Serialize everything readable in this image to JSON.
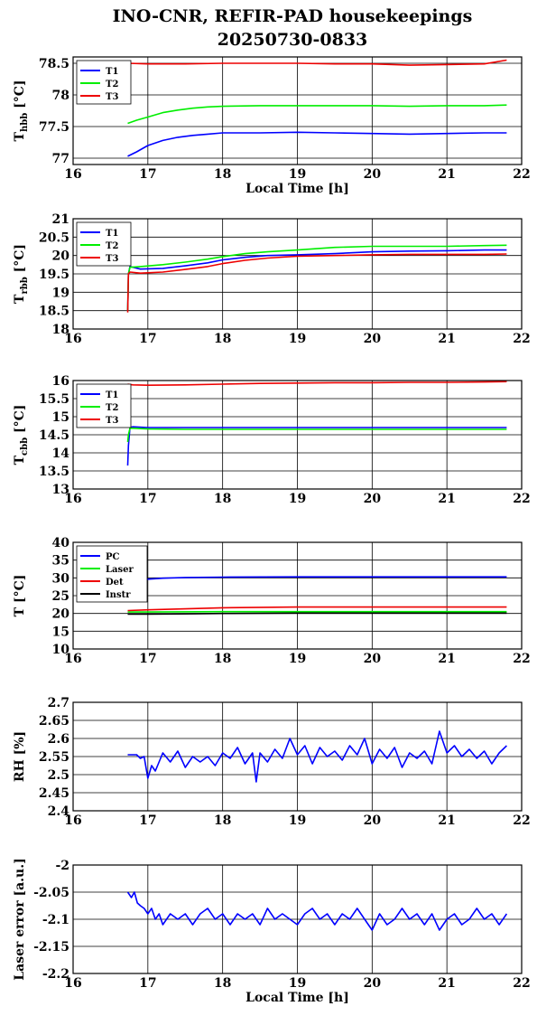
{
  "title_line1": "INO-CNR, REFIR-PAD housekeepings",
  "title_line2": "20250730-0833",
  "chart_data": [
    {
      "type": "line",
      "ylabel": "T",
      "ylabel_sub": "hbb",
      "ylabel_unit": "[°C]",
      "xlabel": "Local Time [h]",
      "xlim": [
        16,
        22
      ],
      "ylim": [
        76.9,
        78.6
      ],
      "yticks": [
        77,
        77.5,
        78,
        78.5
      ],
      "ytick_labels": [
        "77",
        "77.5",
        "78",
        "78.5"
      ],
      "xticks": [
        16,
        17,
        18,
        19,
        20,
        21,
        22
      ],
      "legend_position": "top-left",
      "series": [
        {
          "name": "T1",
          "color": "#0000ff",
          "x": [
            16.73,
            16.85,
            17.0,
            17.2,
            17.4,
            17.6,
            17.8,
            18.0,
            18.5,
            19.0,
            19.5,
            20.0,
            20.5,
            21.0,
            21.5,
            21.8
          ],
          "y": [
            77.03,
            77.1,
            77.2,
            77.28,
            77.33,
            77.36,
            77.38,
            77.4,
            77.4,
            77.41,
            77.4,
            77.39,
            77.38,
            77.39,
            77.4,
            77.4
          ]
        },
        {
          "name": "T2",
          "color": "#00ee00",
          "x": [
            16.73,
            16.85,
            17.0,
            17.2,
            17.4,
            17.6,
            17.8,
            18.0,
            18.5,
            19.0,
            19.5,
            20.0,
            20.5,
            21.0,
            21.5,
            21.8
          ],
          "y": [
            77.55,
            77.6,
            77.65,
            77.72,
            77.76,
            77.79,
            77.81,
            77.82,
            77.83,
            77.83,
            77.83,
            77.83,
            77.82,
            77.83,
            77.83,
            77.84
          ]
        },
        {
          "name": "T3",
          "color": "#ee0000",
          "x": [
            16.73,
            17.0,
            17.5,
            18.0,
            18.5,
            19.0,
            19.5,
            20.0,
            20.5,
            21.0,
            21.5,
            21.8
          ],
          "y": [
            78.5,
            78.49,
            78.49,
            78.5,
            78.5,
            78.5,
            78.49,
            78.49,
            78.47,
            78.48,
            78.49,
            78.55
          ]
        }
      ]
    },
    {
      "type": "line",
      "ylabel": "T",
      "ylabel_sub": "rbb",
      "ylabel_unit": "[°C]",
      "xlabel": "",
      "xlim": [
        16,
        22
      ],
      "ylim": [
        18,
        21
      ],
      "yticks": [
        18,
        18.5,
        19,
        19.5,
        20,
        20.5,
        21
      ],
      "ytick_labels": [
        "18",
        "18.5",
        "19",
        "19.5",
        "20",
        "20.5",
        "21"
      ],
      "xticks": [
        16,
        17,
        18,
        19,
        20,
        21,
        22
      ],
      "legend_position": "top-left",
      "series": [
        {
          "name": "T1",
          "color": "#0000ff",
          "x": [
            16.73,
            16.74,
            16.76,
            16.9,
            17.2,
            17.5,
            17.8,
            18.0,
            18.3,
            18.6,
            19.0,
            19.5,
            20.0,
            20.5,
            21.0,
            21.5,
            21.8
          ],
          "y": [
            18.5,
            19.5,
            19.7,
            19.63,
            19.65,
            19.72,
            19.8,
            19.88,
            19.95,
            20.0,
            20.02,
            20.05,
            20.1,
            20.12,
            20.13,
            20.15,
            20.15
          ]
        },
        {
          "name": "T2",
          "color": "#00ee00",
          "x": [
            16.73,
            16.74,
            16.76,
            16.9,
            17.2,
            17.5,
            17.8,
            18.0,
            18.3,
            18.6,
            19.0,
            19.5,
            20.0,
            20.5,
            21.0,
            21.5,
            21.8
          ],
          "y": [
            18.5,
            19.5,
            19.68,
            19.7,
            19.75,
            19.82,
            19.9,
            19.97,
            20.05,
            20.1,
            20.15,
            20.22,
            20.25,
            20.25,
            20.25,
            20.27,
            20.28
          ]
        },
        {
          "name": "T3",
          "color": "#ee0000",
          "x": [
            16.73,
            16.74,
            16.76,
            16.9,
            17.2,
            17.5,
            17.8,
            18.0,
            18.3,
            18.6,
            19.0,
            19.5,
            20.0,
            20.5,
            21.0,
            21.5,
            21.8
          ],
          "y": [
            18.45,
            19.5,
            19.55,
            19.52,
            19.55,
            19.62,
            19.7,
            19.78,
            19.87,
            19.93,
            19.98,
            20.0,
            20.02,
            20.03,
            20.03,
            20.03,
            20.04
          ]
        }
      ]
    },
    {
      "type": "line",
      "ylabel": "T",
      "ylabel_sub": "cbb",
      "ylabel_unit": "[°C]",
      "xlabel": "",
      "xlim": [
        16,
        22
      ],
      "ylim": [
        13,
        16
      ],
      "yticks": [
        13,
        13.5,
        14,
        14.5,
        15,
        15.5,
        16
      ],
      "ytick_labels": [
        "13",
        "13.5",
        "14",
        "14.5",
        "15",
        "15.5",
        "16"
      ],
      "xticks": [
        16,
        17,
        18,
        19,
        20,
        21,
        22
      ],
      "legend_position": "top-left",
      "series": [
        {
          "name": "T1",
          "color": "#0000ff",
          "x": [
            16.73,
            16.74,
            16.76,
            16.8,
            17.0,
            17.5,
            18.0,
            19.0,
            20.0,
            21.0,
            21.8
          ],
          "y": [
            13.65,
            14.2,
            14.7,
            14.72,
            14.7,
            14.7,
            14.7,
            14.7,
            14.7,
            14.7,
            14.7
          ]
        },
        {
          "name": "T2",
          "color": "#00ee00",
          "x": [
            16.73,
            16.74,
            16.76,
            16.8,
            17.0,
            17.5,
            18.0,
            19.0,
            20.0,
            21.0,
            21.8
          ],
          "y": [
            14.3,
            14.5,
            14.68,
            14.68,
            14.66,
            14.65,
            14.65,
            14.65,
            14.65,
            14.65,
            14.65
          ]
        },
        {
          "name": "T3",
          "color": "#ee0000",
          "x": [
            16.73,
            16.8,
            17.0,
            17.5,
            18.0,
            18.5,
            19.0,
            19.5,
            20.0,
            20.5,
            21.0,
            21.5,
            21.8
          ],
          "y": [
            15.9,
            15.88,
            15.87,
            15.88,
            15.9,
            15.92,
            15.93,
            15.94,
            15.94,
            15.95,
            15.95,
            15.96,
            15.97
          ]
        }
      ]
    },
    {
      "type": "line",
      "ylabel": "T [°C]",
      "xlabel": "",
      "xlim": [
        16,
        22
      ],
      "ylim": [
        10,
        40
      ],
      "yticks": [
        10,
        15,
        20,
        25,
        30,
        35,
        40
      ],
      "ytick_labels": [
        "10",
        "15",
        "20",
        "25",
        "30",
        "35",
        "40"
      ],
      "xticks": [
        16,
        17,
        18,
        19,
        20,
        21,
        22
      ],
      "legend_position": "top-left",
      "series": [
        {
          "name": "PC",
          "color": "#0000ff",
          "x": [
            16.73,
            16.9,
            17.2,
            17.5,
            18.0,
            19.0,
            20.0,
            21.0,
            21.8
          ],
          "y": [
            29.0,
            29.5,
            29.9,
            30.1,
            30.2,
            30.3,
            30.3,
            30.3,
            30.3
          ]
        },
        {
          "name": "Laser",
          "color": "#00ee00",
          "x": [
            16.73,
            17.0,
            18.0,
            19.0,
            20.0,
            21.0,
            21.8
          ],
          "y": [
            20.4,
            20.4,
            20.5,
            20.5,
            20.5,
            20.5,
            20.5
          ]
        },
        {
          "name": "Det",
          "color": "#ee0000",
          "x": [
            16.73,
            17.0,
            17.5,
            18.0,
            19.0,
            20.0,
            21.0,
            21.8
          ],
          "y": [
            20.8,
            21.0,
            21.3,
            21.6,
            21.8,
            21.8,
            21.8,
            21.8
          ]
        },
        {
          "name": "Instr",
          "color": "#000000",
          "x": [
            16.73,
            17.0,
            17.6,
            18.0,
            19.0,
            20.0,
            21.0,
            21.8
          ],
          "y": [
            19.8,
            19.8,
            19.9,
            20.0,
            20.1,
            20.1,
            20.1,
            20.1
          ]
        }
      ]
    },
    {
      "type": "line",
      "ylabel": "RH [%]",
      "xlabel": "",
      "xlim": [
        16,
        22
      ],
      "ylim": [
        2.4,
        2.7
      ],
      "yticks": [
        2.4,
        2.45,
        2.5,
        2.55,
        2.6,
        2.65,
        2.7
      ],
      "ytick_labels": [
        "2.4",
        "2.45",
        "2.5",
        "2.55",
        "2.6",
        "2.65",
        "2.7"
      ],
      "xticks": [
        16,
        17,
        18,
        19,
        20,
        21,
        22
      ],
      "legend_position": "none",
      "series": [
        {
          "name": "",
          "color": "#0000ff",
          "x": [
            16.73,
            16.85,
            16.9,
            16.95,
            17.0,
            17.05,
            17.1,
            17.2,
            17.3,
            17.4,
            17.5,
            17.6,
            17.7,
            17.8,
            17.9,
            18.0,
            18.1,
            18.2,
            18.3,
            18.4,
            18.45,
            18.5,
            18.6,
            18.7,
            18.8,
            18.9,
            19.0,
            19.1,
            19.2,
            19.3,
            19.4,
            19.5,
            19.6,
            19.7,
            19.8,
            19.9,
            20.0,
            20.1,
            20.2,
            20.3,
            20.4,
            20.5,
            20.6,
            20.7,
            20.8,
            20.9,
            21.0,
            21.1,
            21.2,
            21.3,
            21.4,
            21.5,
            21.6,
            21.7,
            21.8
          ],
          "y": [
            2.555,
            2.555,
            2.545,
            2.55,
            2.49,
            2.525,
            2.51,
            2.56,
            2.535,
            2.565,
            2.52,
            2.55,
            2.535,
            2.55,
            2.525,
            2.56,
            2.545,
            2.575,
            2.53,
            2.56,
            2.48,
            2.56,
            2.535,
            2.57,
            2.545,
            2.6,
            2.555,
            2.58,
            2.53,
            2.575,
            2.55,
            2.565,
            2.54,
            2.58,
            2.555,
            2.6,
            2.53,
            2.57,
            2.545,
            2.575,
            2.52,
            2.56,
            2.545,
            2.565,
            2.53,
            2.62,
            2.56,
            2.58,
            2.55,
            2.57,
            2.545,
            2.565,
            2.53,
            2.56,
            2.58
          ]
        }
      ]
    },
    {
      "type": "line",
      "ylabel": "Laser error [a.u.]",
      "xlabel": "Local Time [h]",
      "xlim": [
        16,
        22
      ],
      "ylim": [
        -2.2,
        -2.0
      ],
      "yticks": [
        -2.2,
        -2.15,
        -2.1,
        -2.05,
        -2.0
      ],
      "ytick_labels": [
        "-2.2",
        "-2.15",
        "-2.1",
        "-2.05",
        "-2"
      ],
      "xticks": [
        16,
        17,
        18,
        19,
        20,
        21,
        22
      ],
      "legend_position": "none",
      "series": [
        {
          "name": "",
          "color": "#0000ff",
          "x": [
            16.73,
            16.78,
            16.82,
            16.86,
            16.9,
            16.95,
            17.0,
            17.05,
            17.1,
            17.15,
            17.2,
            17.3,
            17.4,
            17.5,
            17.6,
            17.7,
            17.8,
            17.9,
            18.0,
            18.1,
            18.2,
            18.3,
            18.4,
            18.5,
            18.6,
            18.7,
            18.8,
            18.9,
            19.0,
            19.1,
            19.2,
            19.3,
            19.4,
            19.5,
            19.6,
            19.7,
            19.8,
            19.9,
            20.0,
            20.1,
            20.2,
            20.3,
            20.4,
            20.5,
            20.6,
            20.7,
            20.8,
            20.9,
            21.0,
            21.1,
            21.2,
            21.3,
            21.4,
            21.5,
            21.6,
            21.7,
            21.8
          ],
          "y": [
            -2.05,
            -2.06,
            -2.05,
            -2.07,
            -2.075,
            -2.08,
            -2.09,
            -2.08,
            -2.1,
            -2.09,
            -2.11,
            -2.09,
            -2.1,
            -2.09,
            -2.11,
            -2.09,
            -2.08,
            -2.1,
            -2.09,
            -2.11,
            -2.09,
            -2.1,
            -2.09,
            -2.11,
            -2.08,
            -2.1,
            -2.09,
            -2.1,
            -2.11,
            -2.09,
            -2.08,
            -2.1,
            -2.09,
            -2.11,
            -2.09,
            -2.1,
            -2.08,
            -2.1,
            -2.12,
            -2.09,
            -2.11,
            -2.1,
            -2.08,
            -2.1,
            -2.09,
            -2.11,
            -2.09,
            -2.12,
            -2.1,
            -2.09,
            -2.11,
            -2.1,
            -2.08,
            -2.1,
            -2.09,
            -2.11,
            -2.09
          ]
        }
      ]
    }
  ]
}
